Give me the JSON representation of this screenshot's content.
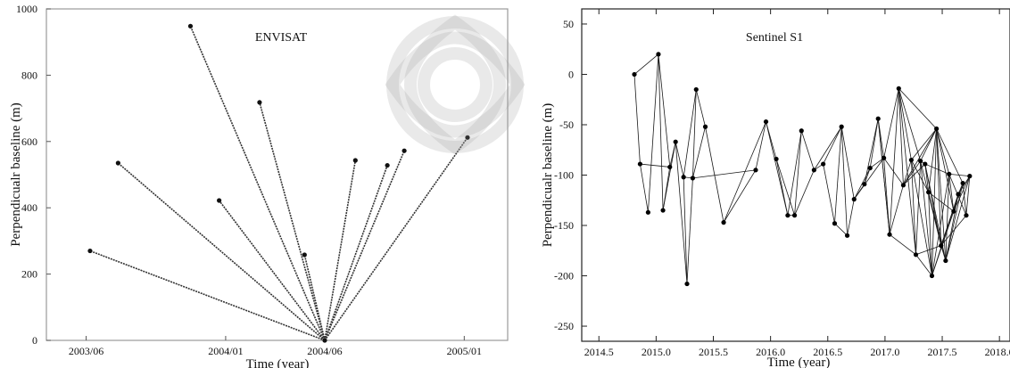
{
  "chart_data": [
    {
      "type": "line",
      "title": "ENVISAT",
      "xlabel": "Time (year)",
      "ylabel": "Perpendicualr baseline (m)",
      "x_tick_labels": [
        "2003/06",
        "2004/01",
        "2004/06",
        "2005/01"
      ],
      "x_ticks": [
        "2003-06-01",
        "2004-01-01",
        "2004-06-01",
        "2005-01-01"
      ],
      "xlim": [
        "2003-04-01",
        "2005-03-10"
      ],
      "ylim": [
        0,
        1000
      ],
      "y_ticks": [
        0,
        200,
        400,
        600,
        800,
        1000
      ],
      "grid": false,
      "master": {
        "x": "2004-06-01",
        "y": 0
      },
      "points": [
        {
          "x": "2003-06-07",
          "y": 270
        },
        {
          "x": "2003-07-20",
          "y": 535
        },
        {
          "x": "2003-11-08",
          "y": 948
        },
        {
          "x": "2003-12-22",
          "y": 422
        },
        {
          "x": "2004-02-22",
          "y": 718
        },
        {
          "x": "2004-05-01",
          "y": 258
        },
        {
          "x": "2004-07-18",
          "y": 543
        },
        {
          "x": "2004-09-05",
          "y": 528
        },
        {
          "x": "2004-10-01",
          "y": 572
        },
        {
          "x": "2005-01-06",
          "y": 612
        }
      ]
    },
    {
      "type": "line",
      "title": "Sentinel S1",
      "xlabel": "Time (year)",
      "ylabel": "Perpendicualr baseline (m)",
      "x_ticks": [
        2014.5,
        2015.0,
        2015.5,
        2016.0,
        2016.5,
        2017.0,
        2017.5,
        2018.0
      ],
      "x_tick_labels": [
        "2014.5",
        "2015.0",
        "2015.5",
        "2016.0",
        "2016.5",
        "2017.0",
        "2017.5",
        "2018.0"
      ],
      "y_ticks": [
        50,
        0,
        -50,
        -100,
        -150,
        -200,
        -250
      ],
      "xlim": [
        2014.35,
        2018.1
      ],
      "ylim": [
        -265,
        65
      ],
      "grid": false,
      "points": [
        [
          2014.81,
          0
        ],
        [
          2014.86,
          -89
        ],
        [
          2014.93,
          -137
        ],
        [
          2015.02,
          20
        ],
        [
          2015.06,
          -135
        ],
        [
          2015.12,
          -92
        ],
        [
          2015.17,
          -67
        ],
        [
          2015.24,
          -102
        ],
        [
          2015.27,
          -208
        ],
        [
          2015.32,
          -103
        ],
        [
          2015.35,
          -15
        ],
        [
          2015.43,
          -52
        ],
        [
          2015.59,
          -147
        ],
        [
          2015.87,
          -95
        ],
        [
          2015.96,
          -47
        ],
        [
          2016.05,
          -84
        ],
        [
          2016.15,
          -140
        ],
        [
          2016.21,
          -140
        ],
        [
          2016.27,
          -56
        ],
        [
          2016.38,
          -95
        ],
        [
          2016.46,
          -89
        ],
        [
          2016.56,
          -148
        ],
        [
          2016.62,
          -52
        ],
        [
          2016.67,
          -160
        ],
        [
          2016.73,
          -124
        ],
        [
          2016.82,
          -109
        ],
        [
          2016.87,
          -93
        ],
        [
          2016.94,
          -44
        ],
        [
          2016.99,
          -83
        ],
        [
          2017.04,
          -159
        ],
        [
          2017.12,
          -14
        ],
        [
          2017.16,
          -110
        ],
        [
          2017.23,
          -85
        ],
        [
          2017.27,
          -179
        ],
        [
          2017.31,
          -86
        ],
        [
          2017.35,
          -89
        ],
        [
          2017.38,
          -117
        ],
        [
          2017.41,
          -200
        ],
        [
          2017.45,
          -54
        ],
        [
          2017.49,
          -170
        ],
        [
          2017.53,
          -185
        ],
        [
          2017.56,
          -99
        ],
        [
          2017.6,
          -136
        ],
        [
          2017.64,
          -119
        ],
        [
          2017.68,
          -108
        ],
        [
          2017.71,
          -140
        ],
        [
          2017.74,
          -101
        ]
      ],
      "edges": [
        [
          0,
          1
        ],
        [
          0,
          3
        ],
        [
          1,
          2
        ],
        [
          1,
          5
        ],
        [
          2,
          3
        ],
        [
          3,
          4
        ],
        [
          3,
          5
        ],
        [
          4,
          6
        ],
        [
          5,
          6
        ],
        [
          6,
          7
        ],
        [
          6,
          8
        ],
        [
          7,
          9
        ],
        [
          8,
          9
        ],
        [
          9,
          10
        ],
        [
          10,
          11
        ],
        [
          10,
          7
        ],
        [
          11,
          12
        ],
        [
          11,
          9
        ],
        [
          4,
          5
        ],
        [
          12,
          13
        ],
        [
          13,
          14
        ],
        [
          13,
          9
        ],
        [
          14,
          15
        ],
        [
          15,
          16
        ],
        [
          15,
          17
        ],
        [
          16,
          18
        ],
        [
          17,
          18
        ],
        [
          18,
          19
        ],
        [
          19,
          20
        ],
        [
          20,
          21
        ],
        [
          21,
          22
        ],
        [
          20,
          22
        ],
        [
          22,
          23
        ],
        [
          23,
          24
        ],
        [
          22,
          24
        ],
        [
          24,
          25
        ],
        [
          25,
          26
        ],
        [
          24,
          26
        ],
        [
          26,
          27
        ],
        [
          27,
          28
        ],
        [
          26,
          28
        ],
        [
          28,
          29
        ],
        [
          29,
          30
        ],
        [
          28,
          30
        ],
        [
          27,
          29
        ],
        [
          30,
          31
        ],
        [
          30,
          32
        ],
        [
          30,
          33
        ],
        [
          29,
          31
        ],
        [
          31,
          32
        ],
        [
          32,
          33
        ],
        [
          33,
          34
        ],
        [
          34,
          35
        ],
        [
          35,
          36
        ],
        [
          36,
          37
        ],
        [
          37,
          38
        ],
        [
          38,
          39
        ],
        [
          39,
          40
        ],
        [
          40,
          41
        ],
        [
          41,
          42
        ],
        [
          42,
          43
        ],
        [
          43,
          44
        ],
        [
          44,
          45
        ],
        [
          45,
          46
        ],
        [
          31,
          34
        ],
        [
          31,
          35
        ],
        [
          32,
          36
        ],
        [
          33,
          37
        ],
        [
          34,
          38
        ],
        [
          35,
          39
        ],
        [
          36,
          40
        ],
        [
          37,
          41
        ],
        [
          38,
          42
        ],
        [
          39,
          43
        ],
        [
          40,
          44
        ],
        [
          41,
          45
        ],
        [
          42,
          46
        ],
        [
          31,
          38
        ],
        [
          32,
          38
        ],
        [
          34,
          37
        ],
        [
          35,
          40
        ],
        [
          36,
          39
        ],
        [
          37,
          42
        ],
        [
          38,
          41
        ],
        [
          39,
          44
        ],
        [
          40,
          43
        ],
        [
          41,
          46
        ],
        [
          43,
          46
        ],
        [
          30,
          34
        ],
        [
          30,
          38
        ],
        [
          29,
          33
        ],
        [
          28,
          31
        ],
        [
          32,
          37
        ],
        [
          34,
          39
        ],
        [
          36,
          38
        ],
        [
          38,
          40
        ],
        [
          38,
          44
        ],
        [
          37,
          43
        ],
        [
          35,
          41
        ],
        [
          33,
          39
        ],
        [
          36,
          42
        ],
        [
          39,
          45
        ],
        [
          40,
          46
        ],
        [
          29,
          27
        ],
        [
          25,
          27
        ],
        [
          24,
          28
        ],
        [
          21,
          23
        ],
        [
          19,
          22
        ],
        [
          17,
          19
        ],
        [
          16,
          17
        ],
        [
          14,
          16
        ],
        [
          12,
          14
        ],
        [
          7,
          8
        ]
      ]
    }
  ]
}
